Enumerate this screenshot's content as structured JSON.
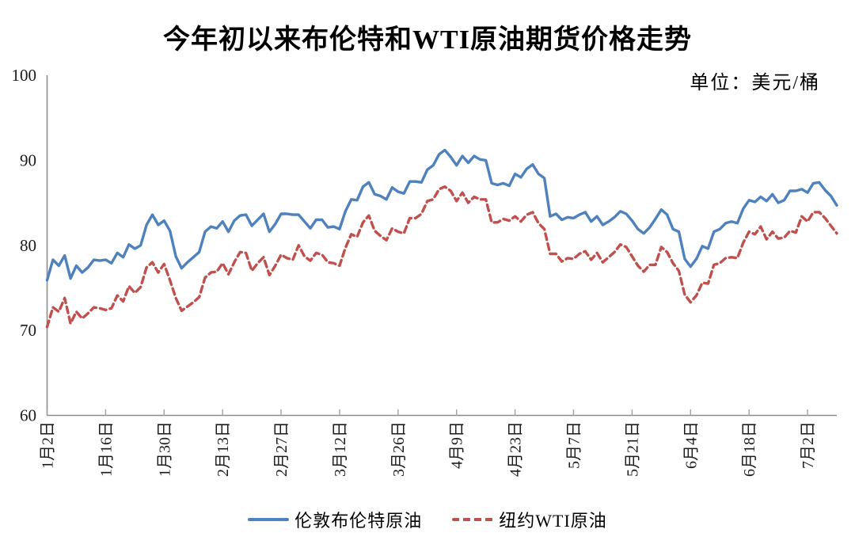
{
  "title": "今年初以来布伦特和WTI原油期货价格走势",
  "unit_label": "单位：美元/桶",
  "colors": {
    "brent": "#4F81BD",
    "wti": "#C0504D",
    "axis": "#8C8C8C",
    "tick": "#A0A0A0",
    "label_text": "#1A1A1A",
    "background": "#FFFFFF"
  },
  "legend": {
    "brent_label": "伦敦布伦特原油",
    "wti_label": "纽约WTI原油"
  },
  "chart_data": {
    "type": "line",
    "title": "今年初以来布伦特和WTI原油期货价格走势",
    "unit": "单位：美元/桶",
    "xlabel": "",
    "ylabel": "",
    "ylim": [
      60,
      100
    ],
    "y_ticks": [
      60,
      70,
      80,
      90,
      100
    ],
    "grid": false,
    "legend_position": "bottom",
    "x_tick_labels": [
      "1月2日",
      "1月16日",
      "1月30日",
      "2月13日",
      "2月27日",
      "3月12日",
      "3月26日",
      "4月9日",
      "4月23日",
      "5月7日",
      "5月21日",
      "6月4日",
      "6月18日",
      "7月2日"
    ],
    "x_label_interval": 10,
    "n_points": 136,
    "series": [
      {
        "name": "伦敦布伦特原油",
        "color": "#4F81BD",
        "style": "solid",
        "values": [
          75.9,
          78.3,
          77.6,
          78.8,
          76.1,
          77.6,
          76.8,
          77.4,
          78.3,
          78.2,
          78.3,
          77.9,
          79.1,
          78.6,
          80.1,
          79.6,
          80.0,
          82.4,
          83.6,
          82.4,
          82.9,
          81.7,
          78.7,
          77.3,
          78.0,
          78.6,
          79.2,
          81.6,
          82.2,
          82.0,
          82.8,
          81.6,
          82.9,
          83.5,
          83.6,
          82.3,
          83.0,
          83.7,
          81.6,
          82.5,
          83.7,
          83.7,
          83.6,
          83.6,
          82.8,
          82.0,
          83.0,
          83.0,
          82.1,
          82.2,
          81.9,
          84.0,
          85.4,
          85.3,
          86.9,
          87.4,
          86.0,
          85.8,
          85.4,
          86.8,
          86.3,
          86.1,
          87.5,
          87.5,
          87.4,
          88.9,
          89.4,
          90.7,
          91.2,
          90.4,
          89.4,
          90.5,
          89.7,
          90.5,
          90.1,
          90.0,
          87.3,
          87.1,
          87.3,
          87.0,
          88.4,
          88.0,
          89.0,
          89.5,
          88.4,
          87.9,
          83.4,
          83.7,
          83.0,
          83.3,
          83.2,
          83.6,
          83.9,
          82.8,
          83.4,
          82.4,
          82.8,
          83.3,
          84.0,
          83.7,
          82.9,
          81.9,
          81.4,
          82.1,
          83.1,
          84.2,
          83.6,
          81.9,
          81.6,
          78.4,
          77.5,
          78.4,
          79.9,
          79.6,
          81.6,
          81.9,
          82.6,
          82.8,
          82.6,
          84.3,
          85.3,
          85.1,
          85.7,
          85.2,
          86.0,
          85.0,
          85.3,
          86.4,
          86.4,
          86.6,
          86.2,
          87.3,
          87.4,
          86.5,
          85.8,
          84.7
        ]
      },
      {
        "name": "纽约WTI原油",
        "color": "#C0504D",
        "style": "dashed",
        "values": [
          70.4,
          72.7,
          72.2,
          73.8,
          70.8,
          72.2,
          71.4,
          72.0,
          72.7,
          72.6,
          72.4,
          72.6,
          74.1,
          73.4,
          75.2,
          74.4,
          75.1,
          77.4,
          78.0,
          76.8,
          77.8,
          75.9,
          73.8,
          72.3,
          72.8,
          73.3,
          73.9,
          76.2,
          76.8,
          76.9,
          77.9,
          76.6,
          78.0,
          79.2,
          79.1,
          77.0,
          77.9,
          78.6,
          76.5,
          77.6,
          78.9,
          78.5,
          78.3,
          80.0,
          78.7,
          78.2,
          79.1,
          78.9,
          78.0,
          77.9,
          77.6,
          79.7,
          81.3,
          81.0,
          82.7,
          83.5,
          81.7,
          81.1,
          80.6,
          82.0,
          81.6,
          81.4,
          83.2,
          83.2,
          83.7,
          85.2,
          85.4,
          86.6,
          86.9,
          86.4,
          85.2,
          86.2,
          85.0,
          85.7,
          85.4,
          85.4,
          82.7,
          82.7,
          83.1,
          82.9,
          83.4,
          82.8,
          83.6,
          83.9,
          82.6,
          81.9,
          79.0,
          79.0,
          78.1,
          78.5,
          78.4,
          79.0,
          79.3,
          78.3,
          79.1,
          78.0,
          78.6,
          79.2,
          80.1,
          79.8,
          78.7,
          77.6,
          76.9,
          77.7,
          77.7,
          79.8,
          79.2,
          77.9,
          77.0,
          74.2,
          73.3,
          74.1,
          75.6,
          75.5,
          77.7,
          77.9,
          78.5,
          78.6,
          78.5,
          80.3,
          81.6,
          81.3,
          82.2,
          80.7,
          81.6,
          80.8,
          80.9,
          81.7,
          81.5,
          83.4,
          82.8,
          83.9,
          83.9,
          83.2,
          82.3,
          81.4
        ]
      }
    ]
  }
}
